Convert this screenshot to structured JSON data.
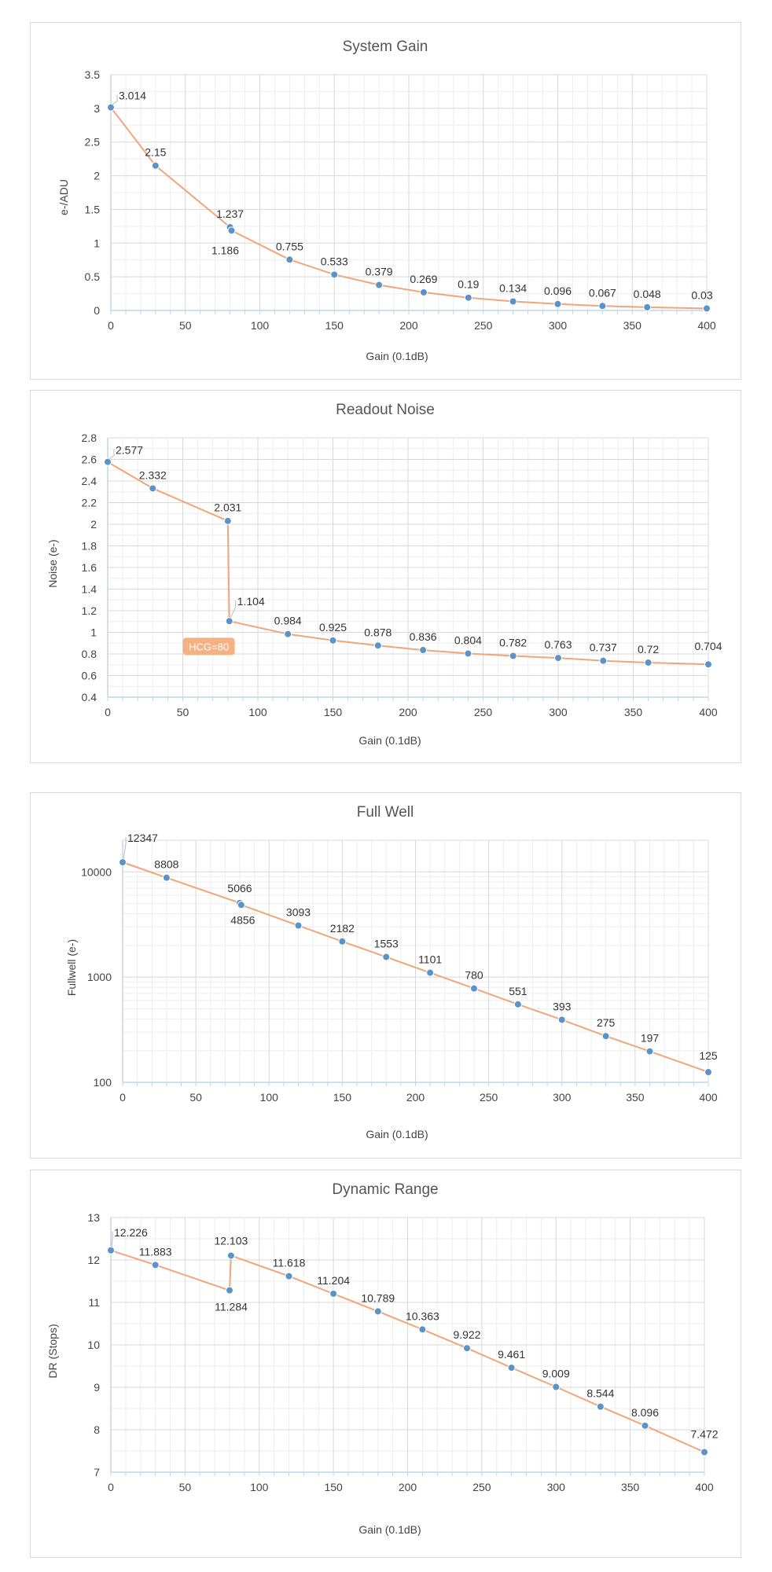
{
  "chart_data": [
    {
      "type": "line",
      "title": "System Gain",
      "xlabel": "Gain (0.1dB)",
      "ylabel": "e-/ADU",
      "xlim": [
        0,
        400
      ],
      "ylim": [
        0,
        3.5
      ],
      "xticks": [
        0,
        50,
        100,
        150,
        200,
        250,
        300,
        350,
        400
      ],
      "yticks": [
        0,
        0.5,
        1,
        1.5,
        2,
        2.5,
        3,
        3.5
      ],
      "grid": true,
      "log_y": false,
      "series": [
        {
          "x": [
            0,
            30,
            80,
            81,
            120,
            150,
            180,
            210,
            240,
            270,
            300,
            330,
            360,
            400
          ],
          "y": [
            3.014,
            2.15,
            1.237,
            1.186,
            0.755,
            0.533,
            0.379,
            0.269,
            0.19,
            0.134,
            0.096,
            0.067,
            0.048,
            0.03
          ],
          "labels": [
            "3.014",
            "2.15",
            "1.237",
            "1.186",
            "0.755",
            "0.533",
            "0.379",
            "0.269",
            "0.19",
            "0.134",
            "0.096",
            "0.067",
            "0.048",
            "0.03"
          ]
        }
      ],
      "annotations": []
    },
    {
      "type": "line",
      "title": "Readout Noise",
      "xlabel": "Gain (0.1dB)",
      "ylabel": "Noise (e-)",
      "xlim": [
        0,
        400
      ],
      "ylim": [
        0.4,
        2.8
      ],
      "xticks": [
        0,
        50,
        100,
        150,
        200,
        250,
        300,
        350,
        400
      ],
      "yticks": [
        0.4,
        0.6,
        0.8,
        1,
        1.2,
        1.4,
        1.6,
        1.8,
        2,
        2.2,
        2.4,
        2.6,
        2.8
      ],
      "grid": true,
      "log_y": false,
      "series": [
        {
          "x": [
            0,
            30,
            80,
            81,
            120,
            150,
            180,
            210,
            240,
            270,
            300,
            330,
            360,
            400
          ],
          "y": [
            2.577,
            2.332,
            2.031,
            1.104,
            0.984,
            0.925,
            0.878,
            0.836,
            0.804,
            0.782,
            0.763,
            0.737,
            0.72,
            0.704
          ],
          "labels": [
            "2.577",
            "2.332",
            "2.031",
            "1.104",
            "0.984",
            "0.925",
            "0.878",
            "0.836",
            "0.804",
            "0.782",
            "0.763",
            "0.737",
            "0.72",
            "0.704"
          ]
        }
      ],
      "annotations": [
        {
          "text": "HCG=80",
          "x": 82,
          "y": 0.87
        }
      ]
    },
    {
      "type": "line",
      "title": "Full Well",
      "xlabel": "Gain (0.1dB)",
      "ylabel": "Fullwell (e-)",
      "xlim": [
        0,
        400
      ],
      "ylim": [
        100,
        20000
      ],
      "xticks": [
        0,
        50,
        100,
        150,
        200,
        250,
        300,
        350,
        400
      ],
      "yticks": [
        100,
        1000,
        10000
      ],
      "ytick_labels": [
        "100",
        "1000",
        "10000"
      ],
      "grid": true,
      "log_y": true,
      "series": [
        {
          "x": [
            0,
            30,
            80,
            81,
            120,
            150,
            180,
            210,
            240,
            270,
            300,
            330,
            360,
            400
          ],
          "y": [
            12347,
            8808,
            5066,
            4856,
            3093,
            2182,
            1553,
            1101,
            780,
            551,
            393,
            275,
            197,
            125
          ],
          "labels": [
            "12347",
            "8808",
            "5066",
            "4856",
            "3093",
            "2182",
            "1553",
            "1101",
            "780",
            "551",
            "393",
            "275",
            "197",
            "125"
          ]
        }
      ],
      "annotations": []
    },
    {
      "type": "line",
      "title": "Dynamic Range",
      "xlabel": "Gain (0.1dB)",
      "ylabel": "DR (Stops)",
      "xlim": [
        0,
        400
      ],
      "ylim": [
        7,
        13
      ],
      "xticks": [
        0,
        50,
        100,
        150,
        200,
        250,
        300,
        350,
        400
      ],
      "yticks": [
        7,
        8,
        9,
        10,
        11,
        12,
        13
      ],
      "grid": true,
      "log_y": false,
      "series": [
        {
          "x": [
            0,
            30,
            80,
            81,
            120,
            150,
            180,
            210,
            240,
            270,
            300,
            330,
            360,
            400
          ],
          "y": [
            12.226,
            11.883,
            11.284,
            12.103,
            11.618,
            11.204,
            10.789,
            10.363,
            9.922,
            9.461,
            9.009,
            8.544,
            8.096,
            7.472
          ],
          "labels": [
            "12.226",
            "11.883",
            "11.284",
            "12.103",
            "11.618",
            "11.204",
            "10.789",
            "10.363",
            "9.922",
            "9.461",
            "9.009",
            "8.544",
            "8.096",
            "7.472"
          ]
        }
      ],
      "annotations": []
    }
  ],
  "colors": {
    "line": "#f0a57a",
    "marker": "#5b93c6",
    "badge": "#f4b183",
    "axis": "#bfd7ea"
  }
}
